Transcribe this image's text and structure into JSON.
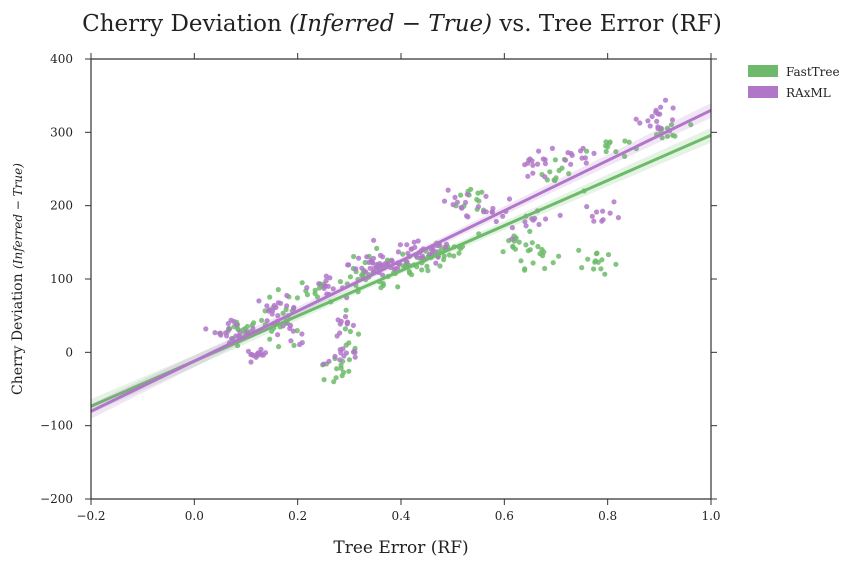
{
  "chart_data": {
    "type": "scatter",
    "title": "Cherry Deviation (Inferred − True) vs. Tree Error (RF)",
    "title_parts": {
      "prefix": "Cherry Deviation ",
      "math": "(Inferred − True)",
      "suffix": " vs. Tree Error (RF)"
    },
    "xlabel": "Tree Error (RF)",
    "ylabel": "Cherry Deviation (Inferred − True)",
    "ylabel_parts": {
      "prefix": "Cherry Deviation ",
      "math": "(Inferred − True)"
    },
    "xlim": [
      -0.2,
      1.0
    ],
    "ylim": [
      -200,
      400
    ],
    "xticks": [
      -0.2,
      0.0,
      0.2,
      0.4,
      0.6,
      0.8,
      1.0
    ],
    "xtick_labels": [
      "−0.2",
      "0.0",
      "0.2",
      "0.4",
      "0.6",
      "0.8",
      "1.0"
    ],
    "yticks": [
      -200,
      -100,
      0,
      100,
      200,
      300,
      400
    ],
    "ytick_labels": [
      "−200",
      "−100",
      "0",
      "100",
      "200",
      "300",
      "400"
    ],
    "grid": false,
    "legend_position": "outside-top-right",
    "series": [
      {
        "name": "FastTree",
        "color": "#6dbb6a",
        "regression": {
          "slope": 308,
          "intercept": -12
        },
        "clusters": [
          {
            "x": 0.09,
            "y": 30,
            "sx": 0.02,
            "sy": 8,
            "n": 20
          },
          {
            "x": 0.17,
            "y": 45,
            "sx": 0.02,
            "sy": 20,
            "n": 22
          },
          {
            "x": 0.25,
            "y": 85,
            "sx": 0.02,
            "sy": 8,
            "n": 12
          },
          {
            "x": 0.27,
            "y": -25,
            "sx": 0.02,
            "sy": 10,
            "n": 14
          },
          {
            "x": 0.3,
            "y": 20,
            "sx": 0.01,
            "sy": 15,
            "n": 8
          },
          {
            "x": 0.33,
            "y": 95,
            "sx": 0.03,
            "sy": 10,
            "n": 20
          },
          {
            "x": 0.4,
            "y": 120,
            "sx": 0.04,
            "sy": 10,
            "n": 35
          },
          {
            "x": 0.48,
            "y": 140,
            "sx": 0.03,
            "sy": 8,
            "n": 20
          },
          {
            "x": 0.55,
            "y": 210,
            "sx": 0.02,
            "sy": 12,
            "n": 12
          },
          {
            "x": 0.62,
            "y": 150,
            "sx": 0.02,
            "sy": 10,
            "n": 14
          },
          {
            "x": 0.66,
            "y": 135,
            "sx": 0.02,
            "sy": 10,
            "n": 14
          },
          {
            "x": 0.7,
            "y": 240,
            "sx": 0.02,
            "sy": 10,
            "n": 12
          },
          {
            "x": 0.78,
            "y": 125,
            "sx": 0.02,
            "sy": 12,
            "n": 14
          },
          {
            "x": 0.8,
            "y": 280,
            "sx": 0.02,
            "sy": 8,
            "n": 12
          },
          {
            "x": 0.92,
            "y": 300,
            "sx": 0.02,
            "sy": 6,
            "n": 10
          }
        ]
      },
      {
        "name": "RAxML",
        "color": "#b077c8",
        "regression": {
          "slope": 342,
          "intercept": -12
        },
        "clusters": [
          {
            "x": 0.08,
            "y": 30,
            "sx": 0.02,
            "sy": 8,
            "n": 20
          },
          {
            "x": 0.12,
            "y": -3,
            "sx": 0.01,
            "sy": 3,
            "n": 14
          },
          {
            "x": 0.16,
            "y": 60,
            "sx": 0.02,
            "sy": 8,
            "n": 18
          },
          {
            "x": 0.19,
            "y": 25,
            "sx": 0.02,
            "sy": 8,
            "n": 10
          },
          {
            "x": 0.25,
            "y": 90,
            "sx": 0.02,
            "sy": 6,
            "n": 14
          },
          {
            "x": 0.29,
            "y": 35,
            "sx": 0.01,
            "sy": 7,
            "n": 10
          },
          {
            "x": 0.29,
            "y": -5,
            "sx": 0.02,
            "sy": 6,
            "n": 12
          },
          {
            "x": 0.36,
            "y": 120,
            "sx": 0.03,
            "sy": 10,
            "n": 40
          },
          {
            "x": 0.44,
            "y": 135,
            "sx": 0.03,
            "sy": 8,
            "n": 30
          },
          {
            "x": 0.5,
            "y": 200,
            "sx": 0.02,
            "sy": 10,
            "n": 10
          },
          {
            "x": 0.58,
            "y": 195,
            "sx": 0.02,
            "sy": 10,
            "n": 12
          },
          {
            "x": 0.66,
            "y": 250,
            "sx": 0.02,
            "sy": 10,
            "n": 14
          },
          {
            "x": 0.66,
            "y": 180,
            "sx": 0.02,
            "sy": 10,
            "n": 12
          },
          {
            "x": 0.75,
            "y": 270,
            "sx": 0.02,
            "sy": 8,
            "n": 12
          },
          {
            "x": 0.79,
            "y": 190,
            "sx": 0.02,
            "sy": 8,
            "n": 10
          },
          {
            "x": 0.9,
            "y": 320,
            "sx": 0.02,
            "sy": 10,
            "n": 18
          }
        ]
      }
    ]
  }
}
